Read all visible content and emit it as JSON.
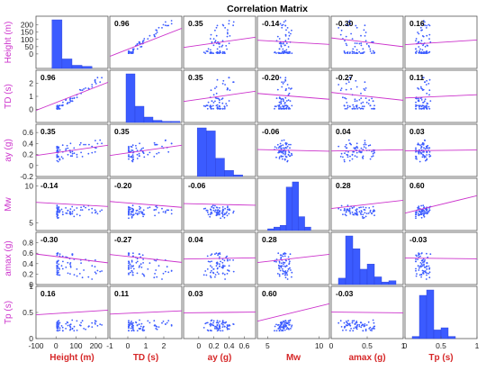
{
  "chart_data": {
    "type": "scatter-matrix",
    "title": "Correlation Matrix",
    "variables": [
      {
        "row_label": "Height (m)",
        "col_label": "Height (m)"
      },
      {
        "row_label": "TD (s)",
        "col_label": "TD (s)"
      },
      {
        "row_label": "ay (g)",
        "col_label": "ay (g)"
      },
      {
        "row_label": "Mw",
        "col_label": "Mw"
      },
      {
        "row_label": "amax (g)",
        "col_label": "amax (g)"
      },
      {
        "row_label": "Tp (s)",
        "col_label": "Tp (s)"
      }
    ],
    "ranges": [
      [
        -100,
        260
      ],
      [
        -1,
        3
      ],
      [
        -0.2,
        0.75
      ],
      [
        4,
        11
      ],
      [
        0,
        1
      ],
      [
        0,
        1
      ]
    ],
    "xticks": [
      [
        "-100",
        "0",
        "100",
        "200"
      ],
      [
        "-1",
        "0",
        "1",
        "2"
      ],
      [
        "0",
        "0.2",
        "0.4",
        "0.6"
      ],
      [
        "5",
        "10"
      ],
      [
        "0",
        "0.5",
        "1"
      ],
      [
        "0",
        "0.5",
        "1"
      ]
    ],
    "yticks": [
      [
        "0",
        "50",
        "100",
        "150",
        "200"
      ],
      [
        "0",
        "1",
        "2"
      ],
      [
        "-0.2",
        "0",
        "0.2",
        "0.4",
        "0.6"
      ],
      [
        "5",
        "10"
      ],
      [
        "0",
        "0.2",
        "0.4",
        "0.6",
        "0.8"
      ],
      [
        "0",
        "0.5",
        "1"
      ]
    ],
    "correlations": [
      [
        null,
        0.96,
        0.35,
        -0.14,
        -0.3,
        0.16
      ],
      [
        0.96,
        null,
        0.35,
        -0.2,
        -0.27,
        0.11
      ],
      [
        0.35,
        0.35,
        null,
        -0.06,
        0.04,
        0.03
      ],
      [
        -0.14,
        -0.2,
        -0.06,
        null,
        0.28,
        0.6
      ],
      [
        -0.3,
        -0.27,
        0.04,
        0.28,
        null,
        -0.03
      ],
      [
        0.16,
        0.11,
        0.03,
        0.6,
        -0.03,
        null
      ]
    ],
    "correlation_labels": [
      [
        "",
        "0.96",
        "0.35",
        "-0.14",
        "-0.30",
        "0.16"
      ],
      [
        "0.96",
        "",
        "0.35",
        "-0.20",
        "-0.27",
        "0.11"
      ],
      [
        "0.35",
        "0.35",
        "",
        "-0.06",
        "0.04",
        "0.03"
      ],
      [
        "-0.14",
        "-0.20",
        "-0.06",
        "",
        "0.28",
        "0.60"
      ],
      [
        "-0.30",
        "-0.27",
        "0.04",
        "0.28",
        "",
        "-0.03"
      ],
      [
        "0.16",
        "0.11",
        "0.03",
        "0.60",
        "-0.03",
        ""
      ]
    ],
    "histograms": [
      {
        "bins": [
          -20,
          30,
          80,
          130,
          180,
          230
        ],
        "counts": [
          46,
          9,
          3,
          2,
          0
        ]
      },
      {
        "bins": [
          -0.1,
          0.4,
          0.9,
          1.4,
          1.9,
          2.4,
          2.9
        ],
        "counts": [
          45,
          15,
          5,
          2,
          1,
          1
        ]
      },
      {
        "bins": [
          -0.02,
          0.1,
          0.22,
          0.34,
          0.46,
          0.58
        ],
        "counts": [
          32,
          30,
          12,
          4,
          1
        ]
      },
      {
        "bins": [
          5.0,
          5.6,
          6.2,
          6.8,
          7.4,
          8.0,
          8.6,
          9.2
        ],
        "counts": [
          1,
          2,
          3,
          25,
          28,
          8,
          2
        ]
      },
      {
        "bins": [
          0.1,
          0.2,
          0.3,
          0.4,
          0.5,
          0.6,
          0.7,
          0.8,
          0.9
        ],
        "counts": [
          5,
          38,
          28,
          12,
          16,
          6,
          2,
          3
        ]
      },
      {
        "bins": [
          0.1,
          0.2,
          0.3,
          0.4,
          0.5,
          0.6,
          0.7
        ],
        "counts": [
          2,
          40,
          45,
          8,
          10,
          2
        ]
      }
    ],
    "colors": {
      "points": "#3b5bff",
      "fit_line": "#cc33cc",
      "bars": "#3b5bff",
      "row_labels": "#cc33cc",
      "col_labels": "#d62728"
    }
  }
}
